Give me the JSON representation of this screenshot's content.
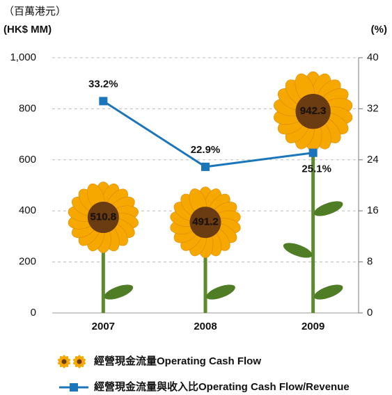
{
  "chart_data": {
    "type": "bar",
    "y_axis_label": "（百萬港元）",
    "y_axis_unit": "(HK$ MM)",
    "y2_axis_label": "(%)",
    "categories": [
      "2007",
      "2008",
      "2009"
    ],
    "series": [
      {
        "name": "經營現金流量Operating Cash Flow",
        "type": "bar",
        "color": "#f6a800",
        "values": [
          510.8,
          491.2,
          942.3
        ]
      },
      {
        "name": "經營現金流量與收入比Operating Cash Flow/Revenue",
        "type": "line",
        "axis": "y2",
        "color": "#1b75bb",
        "values": [
          33.2,
          22.9,
          25.1
        ],
        "value_labels": [
          "33.2%",
          "22.9%",
          "25.1%"
        ]
      }
    ],
    "ylim": [
      0,
      1000
    ],
    "yticks": [
      0,
      200,
      400,
      600,
      800,
      {
        "value": 1000,
        "label": "1,000"
      }
    ],
    "y2lim": [
      0,
      40
    ],
    "y2ticks": [
      0,
      8,
      16,
      24,
      32,
      40
    ],
    "grid": true
  }
}
